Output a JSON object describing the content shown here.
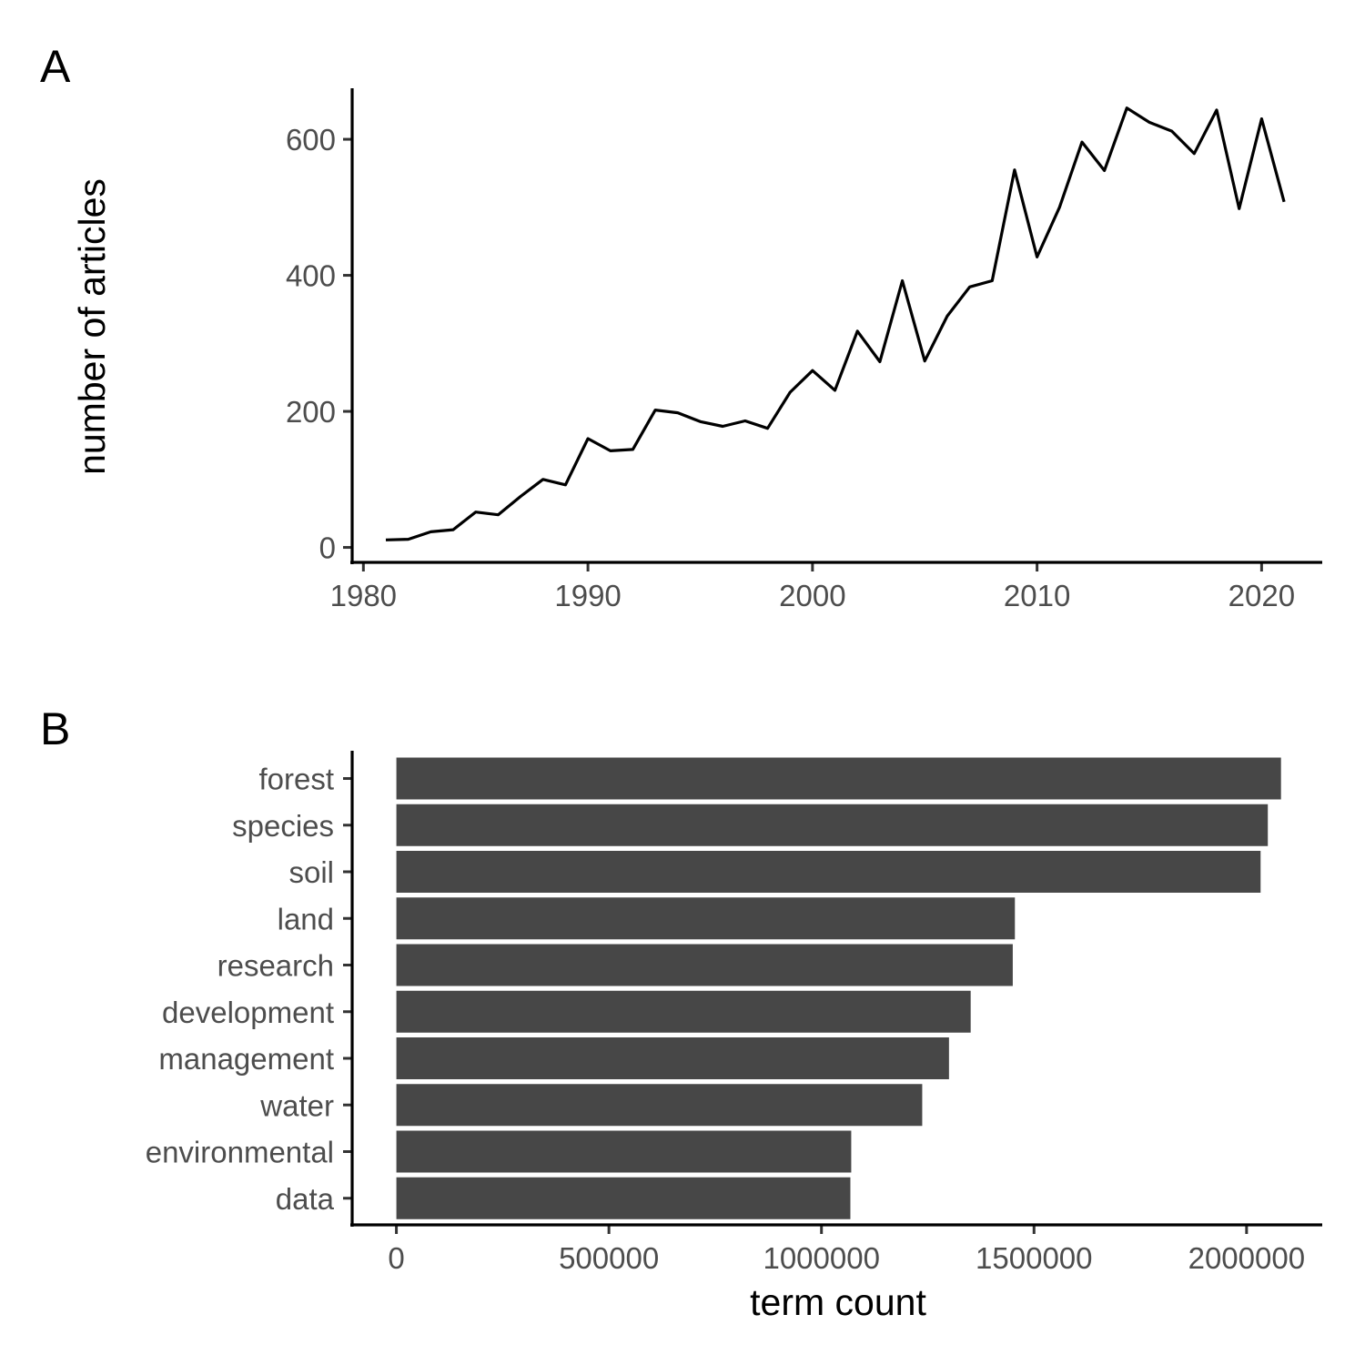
{
  "colors": {
    "line": "#000000",
    "bar": "#474747",
    "tick_text": "#4d4d4d",
    "axis": "#000000",
    "background": "#ffffff"
  },
  "chart_data": [
    {
      "panel": "A",
      "type": "line",
      "title": "",
      "xlabel": "",
      "ylabel": "number of articles",
      "xlim": [
        1979.5,
        2022.7
      ],
      "ylim": [
        -22,
        675
      ],
      "xticks": [
        1980,
        1990,
        2000,
        2010,
        2020
      ],
      "yticks": [
        0,
        200,
        400,
        600
      ],
      "grid": false,
      "series": [
        {
          "x": [
            1981,
            1982,
            1983,
            1984,
            1985,
            1986,
            1987,
            1988,
            1989,
            1990,
            1991,
            1992,
            1993,
            1994,
            1995,
            1996,
            1997,
            1998,
            1999,
            2000,
            2001,
            2002,
            2003,
            2004,
            2005,
            2006,
            2007,
            2008,
            2009,
            2010,
            2011,
            2012,
            2013,
            2014,
            2015,
            2016,
            2017,
            2018,
            2019,
            2020,
            2021
          ],
          "values": [
            11,
            12,
            23,
            26,
            52,
            48,
            75,
            100,
            92,
            160,
            142,
            144,
            202,
            198,
            185,
            178,
            186,
            175,
            228,
            260,
            231,
            318,
            273,
            392,
            274,
            340,
            383,
            392,
            555,
            427,
            500,
            596,
            554,
            646,
            625,
            612,
            579,
            643,
            498,
            630,
            508
          ]
        }
      ]
    },
    {
      "panel": "B",
      "type": "bar",
      "orientation": "horizontal",
      "title": "",
      "xlabel": "term count",
      "ylabel": "",
      "xlim": [
        -104000,
        2178000
      ],
      "xticks": [
        0,
        500000,
        1000000,
        1500000,
        2000000
      ],
      "grid": false,
      "categories": [
        "forest",
        "species",
        "soil",
        "land",
        "research",
        "development",
        "management",
        "water",
        "environmental",
        "data"
      ],
      "values": [
        2081000,
        2050000,
        2033000,
        1455000,
        1450000,
        1351000,
        1300000,
        1237000,
        1070000,
        1068000
      ]
    }
  ]
}
